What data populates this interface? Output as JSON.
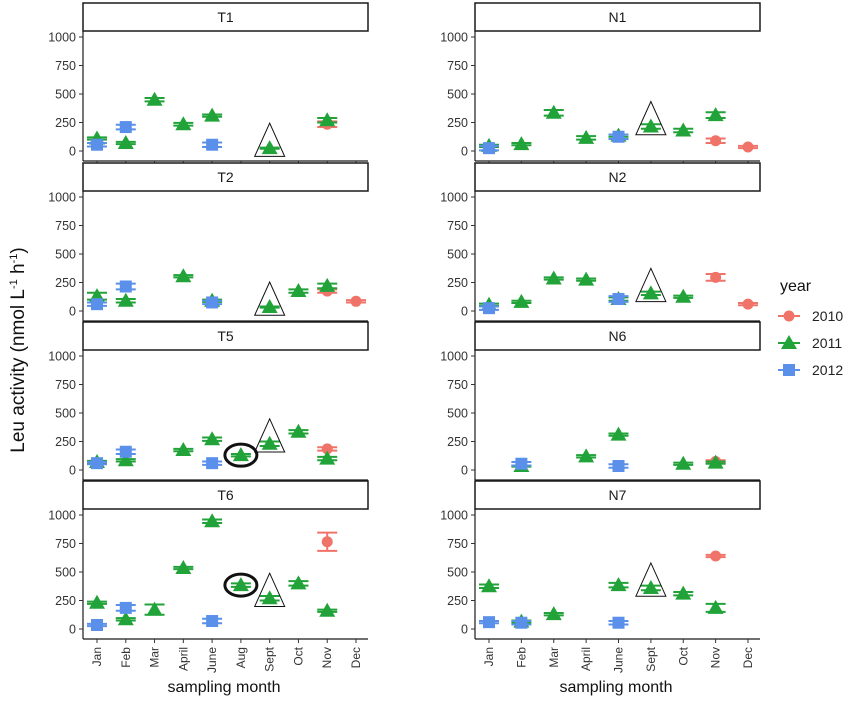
{
  "chart_data": {
    "type": "scatter",
    "ylabel": "Leu activity (nmol L-1 h-1)",
    "ylabel_parts": {
      "main": "Leu activity (nmol L",
      "sup1": "-1",
      "mid": " h",
      "sup2": "-1",
      "end": ")"
    },
    "xlabel": "sampling month",
    "ylim": [
      0,
      1000
    ],
    "yticks": [
      0,
      250,
      500,
      750,
      1000
    ],
    "ytick_labels": [
      "0",
      "250",
      "500",
      "750",
      "1000"
    ],
    "legend": {
      "title": "year",
      "entries": [
        {
          "name": "2010",
          "color": "#f0736a",
          "shape": "circle"
        },
        {
          "name": "2011",
          "color": "#21a339",
          "shape": "triangle"
        },
        {
          "name": "2012",
          "color": "#5b90ea",
          "shape": "square"
        }
      ]
    },
    "panels": [
      {
        "name": "T1",
        "months": [
          "Jan",
          "Feb",
          "Mar",
          "April",
          "June",
          "Aug",
          "Sept",
          "Oct",
          "Nov",
          "Dec"
        ],
        "show_x_labels": false,
        "points": [
          {
            "month": "Jan",
            "year": "2011",
            "value": 110,
            "err": 10
          },
          {
            "month": "Jan",
            "year": "2012",
            "value": 55,
            "err": 15
          },
          {
            "month": "Feb",
            "year": "2011",
            "value": 70,
            "err": 10
          },
          {
            "month": "Feb",
            "year": "2012",
            "value": 210,
            "err": 20
          },
          {
            "month": "Mar",
            "year": "2011",
            "value": 450,
            "err": 15
          },
          {
            "month": "April",
            "year": "2011",
            "value": 235,
            "err": 12
          },
          {
            "month": "June",
            "year": "2011",
            "value": 310,
            "err": 10
          },
          {
            "month": "June",
            "year": "2012",
            "value": 55,
            "err": 20
          },
          {
            "month": "Sept",
            "year": "2011",
            "value": 25,
            "err": 5
          },
          {
            "month": "Nov",
            "year": "2010",
            "value": 235,
            "err": 25
          },
          {
            "month": "Nov",
            "year": "2011",
            "value": 270,
            "err": 20
          }
        ],
        "highlight_triangle": {
          "month": "Sept",
          "value": 25
        }
      },
      {
        "name": "N1",
        "months": [
          "Jan",
          "Feb",
          "Mar",
          "April",
          "June",
          "Sept",
          "Oct",
          "Nov",
          "Dec"
        ],
        "show_x_labels": false,
        "points": [
          {
            "month": "Jan",
            "year": "2011",
            "value": 45,
            "err": 10
          },
          {
            "month": "Jan",
            "year": "2012",
            "value": 25,
            "err": 20
          },
          {
            "month": "Feb",
            "year": "2011",
            "value": 60,
            "err": 10
          },
          {
            "month": "Mar",
            "year": "2011",
            "value": 335,
            "err": 25
          },
          {
            "month": "April",
            "year": "2011",
            "value": 115,
            "err": 15
          },
          {
            "month": "June",
            "year": "2011",
            "value": 135,
            "err": 10
          },
          {
            "month": "June",
            "year": "2012",
            "value": 125,
            "err": 20
          },
          {
            "month": "Sept",
            "year": "2011",
            "value": 215,
            "err": 20
          },
          {
            "month": "Oct",
            "year": "2011",
            "value": 180,
            "err": 15
          },
          {
            "month": "Nov",
            "year": "2010",
            "value": 90,
            "err": 20
          },
          {
            "month": "Nov",
            "year": "2011",
            "value": 315,
            "err": 25
          },
          {
            "month": "Dec",
            "year": "2010",
            "value": 35,
            "err": 10
          }
        ],
        "highlight_triangle": {
          "month": "Sept",
          "value": 215
        }
      },
      {
        "name": "T2",
        "months": [
          "Jan",
          "Feb",
          "Mar",
          "April",
          "June",
          "Aug",
          "Sept",
          "Oct",
          "Nov",
          "Dec"
        ],
        "show_x_labels": false,
        "points": [
          {
            "month": "Jan",
            "year": "2011",
            "value": 130,
            "err": 30
          },
          {
            "month": "Jan",
            "year": "2012",
            "value": 60,
            "err": 15
          },
          {
            "month": "Feb",
            "year": "2011",
            "value": 90,
            "err": 15
          },
          {
            "month": "Feb",
            "year": "2012",
            "value": 215,
            "err": 25
          },
          {
            "month": "April",
            "year": "2011",
            "value": 305,
            "err": 10
          },
          {
            "month": "June",
            "year": "2011",
            "value": 90,
            "err": 10
          },
          {
            "month": "June",
            "year": "2012",
            "value": 75,
            "err": 15
          },
          {
            "month": "Sept",
            "year": "2011",
            "value": 35,
            "err": 5
          },
          {
            "month": "Oct",
            "year": "2011",
            "value": 175,
            "err": 15
          },
          {
            "month": "Nov",
            "year": "2010",
            "value": 175,
            "err": 15
          },
          {
            "month": "Nov",
            "year": "2011",
            "value": 220,
            "err": 20
          },
          {
            "month": "Dec",
            "year": "2010",
            "value": 85,
            "err": 10
          }
        ],
        "highlight_triangle": {
          "month": "Sept",
          "value": 35
        }
      },
      {
        "name": "N2",
        "months": [
          "Jan",
          "Feb",
          "Mar",
          "April",
          "June",
          "Sept",
          "Oct",
          "Nov",
          "Dec"
        ],
        "show_x_labels": false,
        "points": [
          {
            "month": "Jan",
            "year": "2011",
            "value": 55,
            "err": 10
          },
          {
            "month": "Jan",
            "year": "2012",
            "value": 25,
            "err": 15
          },
          {
            "month": "Feb",
            "year": "2011",
            "value": 80,
            "err": 10
          },
          {
            "month": "Mar",
            "year": "2011",
            "value": 285,
            "err": 10
          },
          {
            "month": "April",
            "year": "2011",
            "value": 275,
            "err": 10
          },
          {
            "month": "June",
            "year": "2011",
            "value": 105,
            "err": 15
          },
          {
            "month": "June",
            "year": "2012",
            "value": 105,
            "err": 25
          },
          {
            "month": "Sept",
            "year": "2011",
            "value": 155,
            "err": 15
          },
          {
            "month": "Oct",
            "year": "2011",
            "value": 125,
            "err": 10
          },
          {
            "month": "Nov",
            "year": "2010",
            "value": 295,
            "err": 30
          },
          {
            "month": "Dec",
            "year": "2010",
            "value": 60,
            "err": 10
          }
        ],
        "highlight_triangle": {
          "month": "Sept",
          "value": 155
        }
      },
      {
        "name": "T5",
        "months": [
          "Jan",
          "Feb",
          "Mar",
          "April",
          "June",
          "Aug",
          "Sept",
          "Oct",
          "Nov",
          "Dec"
        ],
        "show_x_labels": false,
        "points": [
          {
            "month": "Jan",
            "year": "2011",
            "value": 70,
            "err": 10
          },
          {
            "month": "Jan",
            "year": "2012",
            "value": 60,
            "err": 10
          },
          {
            "month": "Feb",
            "year": "2011",
            "value": 85,
            "err": 10
          },
          {
            "month": "Feb",
            "year": "2012",
            "value": 160,
            "err": 20
          },
          {
            "month": "April",
            "year": "2011",
            "value": 175,
            "err": 10
          },
          {
            "month": "June",
            "year": "2011",
            "value": 270,
            "err": 15
          },
          {
            "month": "June",
            "year": "2012",
            "value": 60,
            "err": 15
          },
          {
            "month": "Aug",
            "year": "2011",
            "value": 130,
            "err": 10
          },
          {
            "month": "Sept",
            "year": "2011",
            "value": 230,
            "err": 20
          },
          {
            "month": "Oct",
            "year": "2011",
            "value": 335,
            "err": 15
          },
          {
            "month": "Nov",
            "year": "2010",
            "value": 185,
            "err": 15
          },
          {
            "month": "Nov",
            "year": "2011",
            "value": 100,
            "err": 15
          }
        ],
        "highlight_triangle": {
          "month": "Sept",
          "value": 230
        },
        "highlight_circle": {
          "month": "Aug",
          "value": 130
        }
      },
      {
        "name": "N6",
        "months": [
          "Jan",
          "Feb",
          "Mar",
          "April",
          "June",
          "Sept",
          "Oct",
          "Nov",
          "Dec"
        ],
        "show_x_labels": false,
        "points": [
          {
            "month": "Feb",
            "year": "2011",
            "value": 35,
            "err": 5
          },
          {
            "month": "Feb",
            "year": "2012",
            "value": 55,
            "err": 15
          },
          {
            "month": "April",
            "year": "2011",
            "value": 120,
            "err": 10
          },
          {
            "month": "June",
            "year": "2011",
            "value": 310,
            "err": 10
          },
          {
            "month": "June",
            "year": "2012",
            "value": 35,
            "err": 15
          },
          {
            "month": "Oct",
            "year": "2011",
            "value": 55,
            "err": 10
          },
          {
            "month": "Nov",
            "year": "2010",
            "value": 75,
            "err": 10
          },
          {
            "month": "Nov",
            "year": "2011",
            "value": 65,
            "err": 10
          }
        ]
      },
      {
        "name": "T6",
        "months": [
          "Jan",
          "Feb",
          "Mar",
          "April",
          "June",
          "Aug",
          "Sept",
          "Oct",
          "Nov",
          "Dec"
        ],
        "show_x_labels": true,
        "points": [
          {
            "month": "Jan",
            "year": "2011",
            "value": 230,
            "err": 10
          },
          {
            "month": "Jan",
            "year": "2012",
            "value": 35,
            "err": 10
          },
          {
            "month": "Feb",
            "year": "2011",
            "value": 85,
            "err": 10
          },
          {
            "month": "Feb",
            "year": "2012",
            "value": 185,
            "err": 25
          },
          {
            "month": "Mar",
            "year": "2011",
            "value": 170,
            "err": 45
          },
          {
            "month": "April",
            "year": "2011",
            "value": 535,
            "err": 10
          },
          {
            "month": "June",
            "year": "2011",
            "value": 945,
            "err": 15
          },
          {
            "month": "June",
            "year": "2012",
            "value": 70,
            "err": 20
          },
          {
            "month": "Aug",
            "year": "2011",
            "value": 385,
            "err": 15
          },
          {
            "month": "Sept",
            "year": "2011",
            "value": 270,
            "err": 20
          },
          {
            "month": "Oct",
            "year": "2011",
            "value": 400,
            "err": 20
          },
          {
            "month": "Nov",
            "year": "2010",
            "value": 765,
            "err": 80
          },
          {
            "month": "Nov",
            "year": "2011",
            "value": 160,
            "err": 10
          }
        ],
        "highlight_triangle": {
          "month": "Sept",
          "value": 270
        },
        "highlight_circle": {
          "month": "Aug",
          "value": 385
        }
      },
      {
        "name": "N7",
        "months": [
          "Jan",
          "Feb",
          "Mar",
          "April",
          "June",
          "Sept",
          "Oct",
          "Nov",
          "Dec"
        ],
        "show_x_labels": true,
        "points": [
          {
            "month": "Jan",
            "year": "2011",
            "value": 375,
            "err": 15
          },
          {
            "month": "Jan",
            "year": "2012",
            "value": 60,
            "err": 10
          },
          {
            "month": "Feb",
            "year": "2011",
            "value": 65,
            "err": 10
          },
          {
            "month": "Feb",
            "year": "2012",
            "value": 55,
            "err": 15
          },
          {
            "month": "Mar",
            "year": "2011",
            "value": 130,
            "err": 10
          },
          {
            "month": "June",
            "year": "2011",
            "value": 385,
            "err": 20
          },
          {
            "month": "June",
            "year": "2012",
            "value": 55,
            "err": 15
          },
          {
            "month": "Sept",
            "year": "2011",
            "value": 360,
            "err": 20
          },
          {
            "month": "Oct",
            "year": "2011",
            "value": 310,
            "err": 15
          },
          {
            "month": "Nov",
            "year": "2010",
            "value": 640,
            "err": 10
          },
          {
            "month": "Nov",
            "year": "2011",
            "value": 185,
            "err": 35
          }
        ],
        "highlight_triangle": {
          "month": "Sept",
          "value": 360
        }
      }
    ]
  }
}
